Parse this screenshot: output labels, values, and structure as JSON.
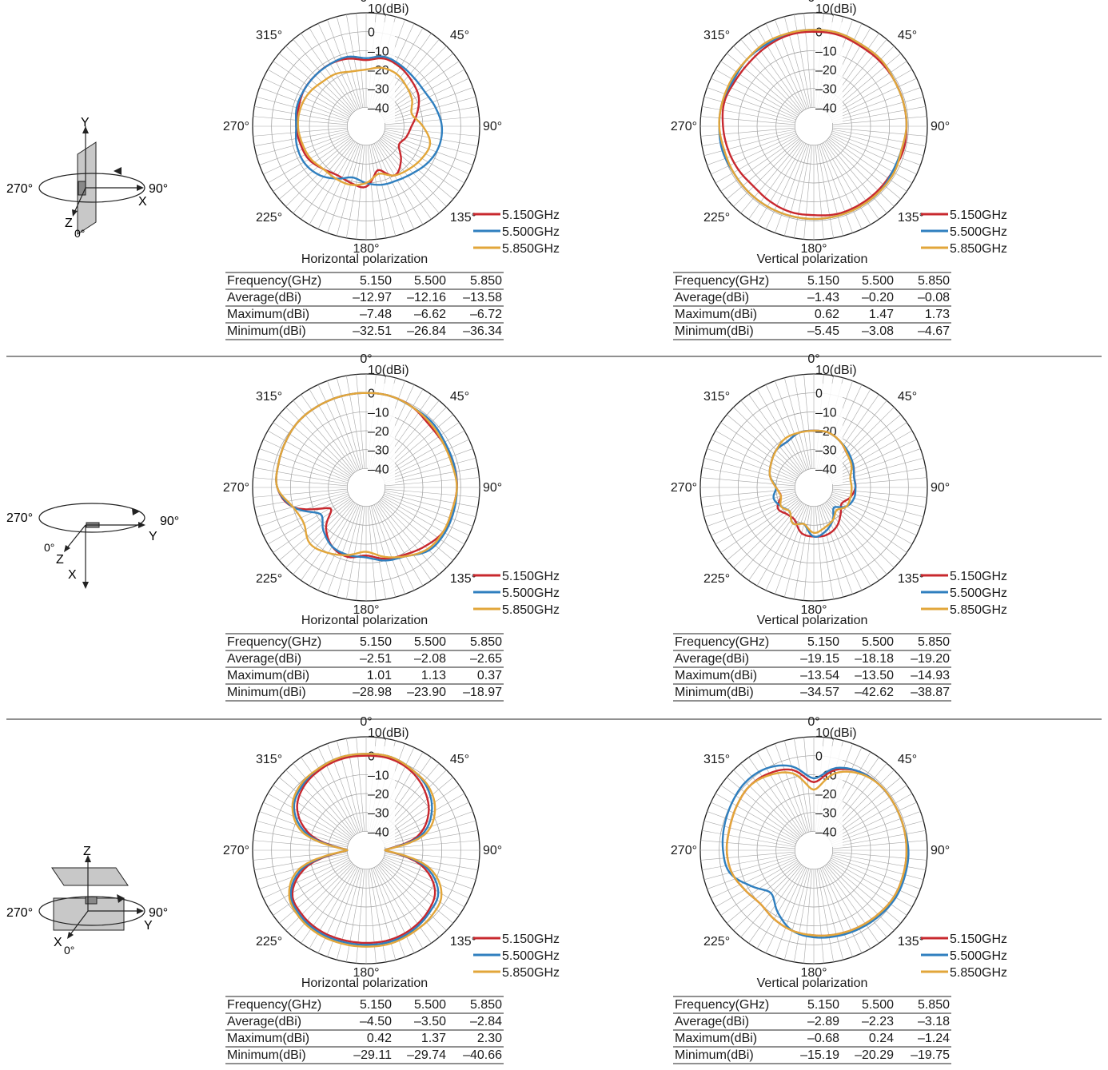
{
  "common": {
    "radial_unit_label": "10(dBi)",
    "radial_tick_labels": [
      "0",
      "–10",
      "–20",
      "–30",
      "–40"
    ],
    "angle_labels": [
      "0°",
      "45°",
      "90°",
      "135°",
      "180°",
      "225°",
      "270°",
      "315°"
    ],
    "table_headers": [
      "Frequency(GHz)",
      "Average(dBi)",
      "Maximum(dBi)",
      "Minimum(dBi)"
    ],
    "frequencies": [
      "5.150",
      "5.500",
      "5.850"
    ],
    "legend": [
      "5.150GHz",
      "5.500GHz",
      "5.850GHz"
    ],
    "series_colors": [
      "#c8282e",
      "#2f7fbf",
      "#e2a63a"
    ]
  },
  "orientations": [
    {
      "name": "vertical-board",
      "labels": {
        "up": "Y",
        "right_axis": "X",
        "out": "Z",
        "left_angle": "270°",
        "right_angle": "90°",
        "zero_angle": "0°"
      }
    },
    {
      "name": "horizontal-board",
      "labels": {
        "up": "",
        "right_axis": "Y",
        "out": "Z",
        "down": "X",
        "left_angle": "270°",
        "right_angle": "90°",
        "zero_angle": "0°"
      }
    },
    {
      "name": "upright-board",
      "labels": {
        "up": "Z",
        "right_axis": "Y",
        "out": "X",
        "left_angle": "270°",
        "right_angle": "90°",
        "zero_angle": "0°"
      }
    }
  ],
  "chart_data": [
    {
      "type": "polar-line",
      "title": "Horizontal polarization",
      "rlim": [
        -50,
        10
      ],
      "theta_deg": [
        0,
        15,
        30,
        45,
        60,
        75,
        90,
        105,
        120,
        135,
        150,
        165,
        180,
        195,
        210,
        225,
        240,
        255,
        270,
        285,
        300,
        315,
        330,
        345
      ],
      "series": [
        {
          "name": "5.150GHz",
          "values": [
            -15,
            -13,
            -14,
            -16,
            -18,
            -22,
            -26,
            -28,
            -30,
            -24,
            -20,
            -26,
            -18,
            -19,
            -20,
            -18,
            -15,
            -14,
            -13,
            -13,
            -12,
            -12,
            -12,
            -13
          ]
        },
        {
          "name": "5.500GHz",
          "values": [
            -14,
            -12,
            -13,
            -14,
            -14,
            -12,
            -10,
            -10,
            -12,
            -15,
            -17,
            -18,
            -20,
            -22,
            -18,
            -14,
            -12,
            -12,
            -13,
            -12,
            -12,
            -12,
            -12,
            -12
          ]
        },
        {
          "name": "5.850GHz",
          "values": [
            -20,
            -18,
            -18,
            -20,
            -22,
            -25,
            -20,
            -15,
            -16,
            -18,
            -20,
            -24,
            -20,
            -18,
            -18,
            -18,
            -16,
            -15,
            -14,
            -14,
            -15,
            -17,
            -18,
            -20
          ]
        }
      ],
      "table": {
        "average": [
          "–12.97",
          "–12.16",
          "–13.58"
        ],
        "maximum": [
          "–7.48",
          "–6.62",
          "–6.72"
        ],
        "minimum": [
          "–32.51",
          "–26.84",
          "–36.34"
        ]
      }
    },
    {
      "type": "polar-line",
      "title": "Vertical polarization",
      "rlim": [
        -50,
        10
      ],
      "theta_deg": [
        0,
        15,
        30,
        45,
        60,
        75,
        90,
        105,
        120,
        135,
        150,
        165,
        180,
        195,
        210,
        225,
        240,
        255,
        270,
        285,
        300,
        315,
        330,
        345
      ],
      "series": [
        {
          "name": "5.150GHz",
          "values": [
            0,
            0,
            -1,
            -1,
            -1,
            -1,
            -1,
            -1,
            -2,
            -2,
            -2,
            -2,
            -3,
            -3,
            -4,
            -5,
            -4,
            -3,
            -2,
            -1,
            -2,
            -2,
            -1,
            0
          ]
        },
        {
          "name": "5.500GHz",
          "values": [
            1,
            1,
            0,
            0,
            -1,
            -1,
            -1,
            -2,
            -2,
            -1,
            -1,
            -1,
            -1,
            -1,
            -1,
            -1,
            -1,
            0,
            0,
            0,
            -1,
            0,
            0,
            1
          ]
        },
        {
          "name": "5.850GHz",
          "values": [
            1,
            1,
            0,
            0,
            -1,
            -1,
            -1,
            -2,
            -1,
            -1,
            -1,
            -1,
            -1,
            -1,
            -1,
            -1,
            -1,
            -1,
            0,
            0,
            0,
            0,
            1,
            1
          ]
        }
      ],
      "table": {
        "average": [
          "–1.43",
          "–0.20",
          "–0.08"
        ],
        "maximum": [
          "0.62",
          "1.47",
          "1.73"
        ],
        "minimum": [
          "–5.45",
          "–3.08",
          "–4.67"
        ]
      }
    },
    {
      "type": "polar-line",
      "title": "Horizontal polarization",
      "rlim": [
        -50,
        10
      ],
      "theta_deg": [
        0,
        15,
        30,
        45,
        60,
        75,
        90,
        105,
        120,
        135,
        150,
        165,
        180,
        195,
        210,
        225,
        240,
        255,
        270,
        285,
        300,
        315,
        330,
        345
      ],
      "series": [
        {
          "name": "5.150GHz",
          "values": [
            0,
            0,
            -1,
            -3,
            -3,
            -2,
            -2,
            -3,
            -3,
            -6,
            -9,
            -11,
            -14,
            -12,
            -14,
            -20,
            -28,
            -10,
            -3,
            -2,
            -1,
            0,
            0,
            0
          ]
        },
        {
          "name": "5.500GHz",
          "values": [
            0,
            0,
            -1,
            -1,
            -2,
            -2,
            -2,
            -2,
            -2,
            -3,
            -8,
            -10,
            -13,
            -13,
            -14,
            -18,
            -22,
            -10,
            -3,
            -2,
            -1,
            0,
            0,
            0
          ]
        },
        {
          "name": "5.850GHz",
          "values": [
            0,
            0,
            -1,
            -2,
            -3,
            -3,
            -2,
            -3,
            -3,
            -4,
            -8,
            -12,
            -16,
            -13,
            -10,
            -8,
            -12,
            -10,
            -3,
            -2,
            -1,
            0,
            0,
            0
          ]
        }
      ],
      "table": {
        "average": [
          "–2.51",
          "–2.08",
          "–2.65"
        ],
        "maximum": [
          "1.01",
          "1.13",
          "0.37"
        ],
        "minimum": [
          "–28.98",
          "–23.90",
          "–18.97"
        ]
      }
    },
    {
      "type": "polar-line",
      "title": "Vertical polarization",
      "rlim": [
        -50,
        10
      ],
      "theta_deg": [
        0,
        15,
        30,
        45,
        60,
        75,
        90,
        105,
        120,
        135,
        150,
        165,
        180,
        195,
        210,
        225,
        240,
        255,
        270,
        285,
        300,
        315,
        330,
        345
      ],
      "series": [
        {
          "name": "5.150GHz",
          "values": [
            -20,
            -20,
            -22,
            -25,
            -26,
            -28,
            -28,
            -30,
            -33,
            -30,
            -26,
            -24,
            -24,
            -25,
            -30,
            -30,
            -28,
            -32,
            -30,
            -26,
            -24,
            -22,
            -22,
            -20
          ]
        },
        {
          "name": "5.500GHz",
          "values": [
            -20,
            -20,
            -22,
            -24,
            -26,
            -28,
            -28,
            -28,
            -30,
            -35,
            -30,
            -26,
            -24,
            -30,
            -28,
            -32,
            -30,
            -28,
            -30,
            -26,
            -24,
            -22,
            -22,
            -20
          ]
        },
        {
          "name": "5.850GHz",
          "values": [
            -20,
            -20,
            -22,
            -25,
            -27,
            -30,
            -30,
            -30,
            -30,
            -33,
            -30,
            -28,
            -26,
            -30,
            -28,
            -32,
            -30,
            -32,
            -30,
            -26,
            -24,
            -22,
            -20,
            -20
          ]
        }
      ],
      "table": {
        "average": [
          "–19.15",
          "–18.18",
          "–19.20"
        ],
        "maximum": [
          "–13.54",
          "–13.50",
          "–14.93"
        ],
        "minimum": [
          "–34.57",
          "–42.62",
          "–38.87"
        ]
      }
    },
    {
      "type": "polar-line",
      "title": "Horizontal polarization",
      "rlim": [
        -50,
        10
      ],
      "theta_deg": [
        0,
        15,
        30,
        45,
        60,
        75,
        90,
        105,
        120,
        135,
        150,
        165,
        180,
        195,
        210,
        225,
        240,
        255,
        270,
        285,
        300,
        315,
        330,
        345
      ],
      "series": [
        {
          "name": "5.150GHz",
          "values": [
            0,
            0,
            -2,
            -6,
            -12,
            -22,
            -40,
            -20,
            -8,
            -4,
            -2,
            -1,
            -1,
            -1,
            -1,
            -2,
            -5,
            -18,
            -40,
            -20,
            -8,
            -3,
            -1,
            0
          ]
        },
        {
          "name": "5.500GHz",
          "values": [
            1,
            1,
            -1,
            -4,
            -10,
            -20,
            -40,
            -18,
            -6,
            -3,
            -1,
            0,
            0,
            0,
            0,
            -1,
            -4,
            -16,
            -40,
            -18,
            -6,
            -2,
            0,
            1
          ]
        },
        {
          "name": "5.850GHz",
          "values": [
            1,
            1,
            -1,
            -3,
            -8,
            -18,
            -40,
            -16,
            -4,
            -1,
            0,
            1,
            1,
            1,
            1,
            0,
            -3,
            -14,
            -40,
            -16,
            -5,
            -1,
            0,
            1
          ]
        }
      ],
      "table": {
        "average": [
          "–4.50",
          "–3.50",
          "–2.84"
        ],
        "maximum": [
          "0.42",
          "1.37",
          "2.30"
        ],
        "minimum": [
          "–29.11",
          "–29.74",
          "–40.66"
        ]
      }
    },
    {
      "type": "polar-line",
      "title": "Vertical polarization",
      "rlim": [
        -50,
        10
      ],
      "theta_deg": [
        0,
        15,
        30,
        45,
        60,
        75,
        90,
        105,
        120,
        135,
        150,
        165,
        180,
        195,
        210,
        225,
        240,
        255,
        270,
        285,
        300,
        315,
        330,
        345
      ],
      "series": [
        {
          "name": "5.150GHz",
          "values": [
            -14,
            -6,
            -2,
            -1,
            -1,
            -1,
            -1,
            -1,
            -1,
            -2,
            -3,
            -4,
            -5,
            -6,
            -8,
            -10,
            -8,
            -5,
            -4,
            -4,
            -3,
            -2,
            -3,
            -6
          ]
        },
        {
          "name": "5.500GHz",
          "values": [
            -12,
            -5,
            -2,
            -1,
            -1,
            -1,
            0,
            0,
            0,
            -1,
            -2,
            -3,
            -4,
            -6,
            -12,
            -18,
            -12,
            -4,
            -2,
            -1,
            0,
            1,
            0,
            -4
          ]
        },
        {
          "name": "5.850GHz",
          "values": [
            -18,
            -8,
            -3,
            -1,
            -1,
            -1,
            -1,
            -1,
            -1,
            -2,
            -3,
            -4,
            -5,
            -6,
            -8,
            -10,
            -8,
            -5,
            -4,
            -4,
            -3,
            -2,
            -4,
            -8
          ]
        }
      ],
      "table": {
        "average": [
          "–2.89",
          "–2.23",
          "–3.18"
        ],
        "maximum": [
          "–0.68",
          "0.24",
          "–1.24"
        ],
        "minimum": [
          "–15.19",
          "–20.29",
          "–19.75"
        ]
      }
    }
  ]
}
